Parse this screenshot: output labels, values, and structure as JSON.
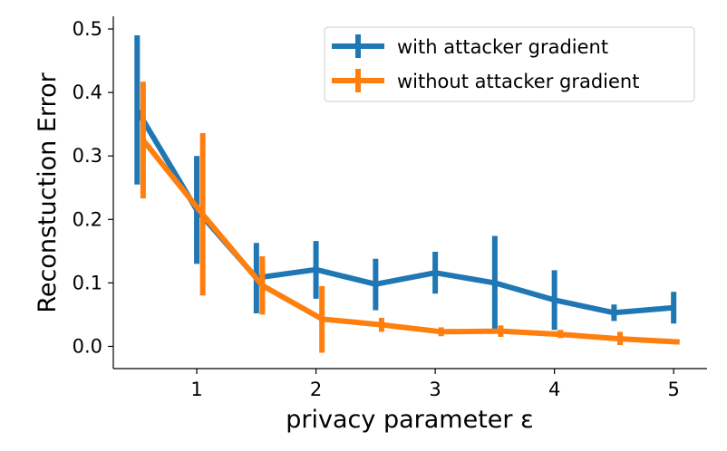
{
  "chart_data": {
    "type": "line",
    "title": "",
    "xlabel": "privacy parameter ε",
    "ylabel": "Reconstuction Error",
    "xlim": [
      0.3,
      5.28
    ],
    "ylim": [
      -0.035,
      0.52
    ],
    "xticks": [
      1,
      2,
      3,
      4,
      5
    ],
    "xtick_labels": [
      "1",
      "2",
      "3",
      "4",
      "5"
    ],
    "yticks": [
      0.0,
      0.1,
      0.2,
      0.3,
      0.4,
      0.5
    ],
    "ytick_labels": [
      "0.0",
      "0.1",
      "0.2",
      "0.3",
      "0.4",
      "0.5"
    ],
    "grid": false,
    "legend_position": "top-right",
    "spines": "left-bottom",
    "series": [
      {
        "name": "with attacker gradient",
        "color": "#1f77b4",
        "x": [
          0.5,
          1.0,
          1.5,
          2.0,
          2.5,
          3.0,
          3.5,
          4.0,
          4.5,
          5.0
        ],
        "y": [
          0.372,
          0.215,
          0.108,
          0.121,
          0.098,
          0.116,
          0.1,
          0.073,
          0.053,
          0.061
        ],
        "err_low": [
          0.255,
          0.13,
          0.052,
          0.075,
          0.057,
          0.083,
          0.027,
          0.026,
          0.04,
          0.036
        ],
        "err_high": [
          0.49,
          0.3,
          0.163,
          0.166,
          0.138,
          0.149,
          0.174,
          0.12,
          0.066,
          0.086
        ]
      },
      {
        "name": "without attacker gradient",
        "color": "#ff7f0e",
        "x": [
          0.55,
          1.05,
          1.55,
          2.05,
          2.55,
          3.05,
          3.55,
          4.05,
          4.55,
          5.05
        ],
        "y": [
          0.325,
          0.208,
          0.096,
          0.043,
          0.034,
          0.023,
          0.024,
          0.019,
          0.012,
          0.007
        ],
        "err_low": [
          0.233,
          0.08,
          0.05,
          -0.01,
          0.023,
          0.016,
          0.015,
          0.013,
          0.002,
          0.007
        ],
        "err_high": [
          0.417,
          0.336,
          0.142,
          0.095,
          0.045,
          0.03,
          0.033,
          0.026,
          0.023,
          0.007
        ]
      }
    ]
  }
}
